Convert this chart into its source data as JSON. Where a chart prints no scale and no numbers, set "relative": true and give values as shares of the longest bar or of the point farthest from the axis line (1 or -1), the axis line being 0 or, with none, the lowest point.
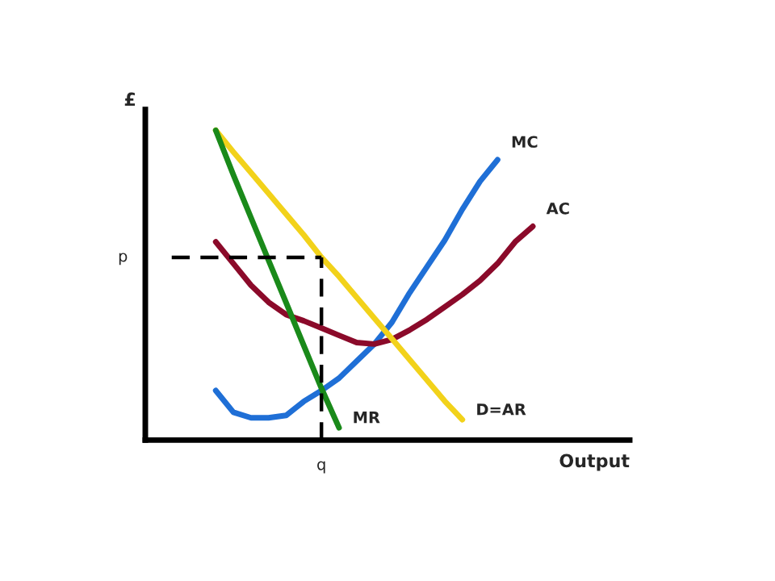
{
  "chart_data": {
    "type": "line",
    "xlabel": "Output",
    "ylabel": "£",
    "relative": true,
    "categories": [
      null,
      null,
      null,
      null,
      null,
      null,
      null,
      null,
      null,
      null,
      null,
      null,
      null,
      null,
      null,
      null,
      null,
      null,
      null,
      null,
      null,
      null,
      null,
      null,
      null,
      null
    ],
    "legend": false,
    "marker": "none",
    "line_style": "solid",
    "annotations": [
      "q"
    ],
    "ref_lines": [
      {
        "axis": "y",
        "value": 0.59,
        "label": "p",
        "color": "#000000",
        "line_style": "dashed"
      }
    ],
    "series": [
      {
        "name": "MC",
        "color": "#1f6fd6",
        "values": [
          null,
          null,
          0.16,
          0.09,
          0.072,
          0.072,
          0.08,
          0.125,
          0.16,
          0.2,
          0.255,
          0.31,
          0.38,
          0.475,
          0.56,
          0.645,
          0.745,
          0.835,
          0.905,
          null,
          null,
          null,
          null,
          null,
          null,
          null
        ]
      },
      {
        "name": "AC",
        "color": "#8b0a2a",
        "values": [
          null,
          null,
          0.64,
          0.57,
          0.5,
          0.445,
          0.405,
          0.385,
          0.362,
          0.338,
          0.315,
          0.31,
          0.325,
          0.355,
          0.39,
          0.43,
          0.47,
          0.515,
          0.57,
          0.64,
          0.69,
          null,
          null,
          null,
          null,
          null
        ]
      },
      {
        "name": "D=AR",
        "color": "#f2d21a",
        "values": [
          null,
          null,
          1,
          0.93,
          0.863,
          0.796,
          0.729,
          0.662,
          0.59,
          0.528,
          0.461,
          0.394,
          0.327,
          0.26,
          0.193,
          0.126,
          0.066,
          null,
          null,
          null,
          null,
          null,
          null,
          null,
          null,
          null
        ]
      },
      {
        "name": "MR",
        "color": "#1a8a1a",
        "values": [
          null,
          null,
          1,
          0.856,
          0.718,
          0.58,
          0.443,
          0.305,
          0.167,
          0.04,
          null,
          null,
          null,
          null,
          null,
          null,
          null,
          null,
          null,
          null,
          null,
          null,
          null,
          null,
          null,
          null
        ]
      }
    ]
  }
}
